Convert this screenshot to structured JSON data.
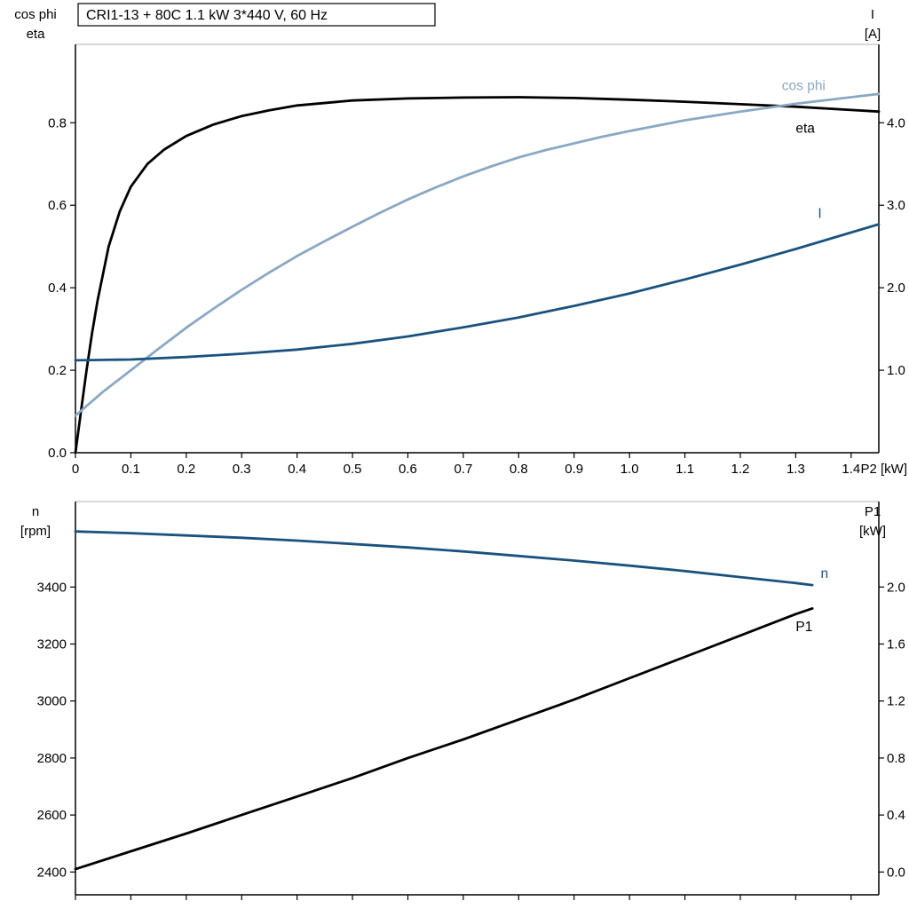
{
  "window": {
    "background": "#ffffff"
  },
  "colors": {
    "black": "#000000",
    "light_blue": "#8aa8c4",
    "dark_blue": "#1a527f",
    "frame_gray": "#b0b0b0",
    "text": "#000000"
  },
  "chart_data": [
    {
      "type": "line",
      "title": "CRI1-13 + 80C   1.1 kW   3*440 V, 60 Hz",
      "grid": false,
      "legend_position": "inline-labels",
      "x_axis": {
        "label": "P2 [kW]",
        "min": 0,
        "max": 1.45,
        "ticks": [
          0,
          0.1,
          0.2,
          0.3,
          0.4,
          0.5,
          0.6,
          0.7,
          0.8,
          0.9,
          1.0,
          1.1,
          1.2,
          1.3,
          1.4
        ],
        "tick_labels": [
          "0",
          "0.1",
          "0.2",
          "0.3",
          "0.4",
          "0.5",
          "0.6",
          "0.7",
          "0.8",
          "0.9",
          "1.0",
          "1.1",
          "1.2",
          "1.3",
          "1.4"
        ]
      },
      "y_left": {
        "title_lines": [
          "cos phi",
          "eta"
        ],
        "min": 0,
        "max": 0.99,
        "ticks": [
          0,
          0.2,
          0.4,
          0.6,
          0.8
        ],
        "tick_labels": [
          "0.0",
          "0.2",
          "0.4",
          "0.6",
          "0.8"
        ]
      },
      "y_right": {
        "title_lines": [
          "I",
          "[A]"
        ],
        "min": 0,
        "max": 4.95,
        "ticks": [
          1,
          2,
          3,
          4
        ],
        "tick_labels": [
          "1.0",
          "2.0",
          "3.0",
          "4.0"
        ]
      },
      "series": [
        {
          "name": "eta",
          "label": "eta",
          "axis": "left",
          "color_key": "black",
          "label_at": [
            1.3,
            0.787
          ],
          "points": [
            [
              0,
              0
            ],
            [
              0.01,
              0.1
            ],
            [
              0.02,
              0.2
            ],
            [
              0.03,
              0.29
            ],
            [
              0.04,
              0.37
            ],
            [
              0.06,
              0.5
            ],
            [
              0.08,
              0.585
            ],
            [
              0.1,
              0.645
            ],
            [
              0.13,
              0.7
            ],
            [
              0.16,
              0.735
            ],
            [
              0.2,
              0.768
            ],
            [
              0.25,
              0.796
            ],
            [
              0.3,
              0.816
            ],
            [
              0.35,
              0.83
            ],
            [
              0.4,
              0.842
            ],
            [
              0.5,
              0.854
            ],
            [
              0.6,
              0.859
            ],
            [
              0.7,
              0.861
            ],
            [
              0.8,
              0.862
            ],
            [
              0.9,
              0.86
            ],
            [
              1,
              0.856
            ],
            [
              1.1,
              0.851
            ],
            [
              1.2,
              0.845
            ],
            [
              1.3,
              0.839
            ],
            [
              1.4,
              0.831
            ],
            [
              1.45,
              0.827
            ]
          ]
        },
        {
          "name": "cos phi",
          "label": "cos phi",
          "axis": "left",
          "color_key": "light_blue",
          "label_at": [
            1.275,
            0.89
          ],
          "points": [
            [
              0,
              0.09
            ],
            [
              0.05,
              0.148
            ],
            [
              0.1,
              0.2
            ],
            [
              0.15,
              0.252
            ],
            [
              0.2,
              0.303
            ],
            [
              0.25,
              0.35
            ],
            [
              0.3,
              0.395
            ],
            [
              0.35,
              0.437
            ],
            [
              0.4,
              0.477
            ],
            [
              0.45,
              0.513
            ],
            [
              0.5,
              0.548
            ],
            [
              0.55,
              0.582
            ],
            [
              0.6,
              0.614
            ],
            [
              0.65,
              0.643
            ],
            [
              0.7,
              0.67
            ],
            [
              0.75,
              0.694
            ],
            [
              0.8,
              0.716
            ],
            [
              0.85,
              0.734
            ],
            [
              0.9,
              0.75
            ],
            [
              0.95,
              0.766
            ],
            [
              1,
              0.78
            ],
            [
              1.1,
              0.806
            ],
            [
              1.2,
              0.827
            ],
            [
              1.3,
              0.846
            ],
            [
              1.4,
              0.862
            ],
            [
              1.45,
              0.87
            ]
          ]
        },
        {
          "name": "I",
          "label": "I",
          "axis": "right",
          "color_key": "dark_blue",
          "label_at": [
            1.34,
            2.9
          ],
          "points": [
            [
              0,
              1.12
            ],
            [
              0.1,
              1.13
            ],
            [
              0.2,
              1.16
            ],
            [
              0.3,
              1.2
            ],
            [
              0.4,
              1.25
            ],
            [
              0.5,
              1.32
            ],
            [
              0.6,
              1.41
            ],
            [
              0.7,
              1.52
            ],
            [
              0.8,
              1.64
            ],
            [
              0.9,
              1.78
            ],
            [
              1,
              1.93
            ],
            [
              1.1,
              2.1
            ],
            [
              1.2,
              2.28
            ],
            [
              1.3,
              2.47
            ],
            [
              1.4,
              2.67
            ],
            [
              1.45,
              2.77
            ]
          ]
        }
      ]
    },
    {
      "type": "line",
      "title": "",
      "grid": false,
      "legend_position": "inline-labels",
      "x_axis": {
        "label": "",
        "min": 0,
        "max": 1.45,
        "ticks": [
          0,
          0.1,
          0.2,
          0.3,
          0.4,
          0.5,
          0.6,
          0.7,
          0.8,
          0.9,
          1.0,
          1.1,
          1.2,
          1.3,
          1.4
        ],
        "tick_labels": []
      },
      "y_left": {
        "title_lines": [
          "n",
          "[rpm]"
        ],
        "min": 2320,
        "max": 3700,
        "ticks": [
          2400,
          2600,
          2800,
          3000,
          3200,
          3400
        ],
        "tick_labels": [
          "2400",
          "2600",
          "2800",
          "3000",
          "3200",
          "3400"
        ]
      },
      "y_right": {
        "title_lines": [
          "P1",
          "[kW]"
        ],
        "min": -0.16,
        "max": 2.6,
        "ticks": [
          0,
          0.4,
          0.8,
          1.2,
          1.6,
          2.0
        ],
        "tick_labels": [
          "0.0",
          "0.4",
          "0.8",
          "1.2",
          "1.6",
          "2.0"
        ]
      },
      "series": [
        {
          "name": "n",
          "label": "n",
          "axis": "left",
          "color_key": "dark_blue",
          "label_at": [
            1.345,
            3448
          ],
          "points": [
            [
              0,
              3595
            ],
            [
              0.1,
              3589
            ],
            [
              0.2,
              3581
            ],
            [
              0.3,
              3573
            ],
            [
              0.4,
              3563
            ],
            [
              0.5,
              3551
            ],
            [
              0.6,
              3539
            ],
            [
              0.7,
              3525
            ],
            [
              0.8,
              3509
            ],
            [
              0.9,
              3493
            ],
            [
              1,
              3475
            ],
            [
              1.1,
              3456
            ],
            [
              1.2,
              3435
            ],
            [
              1.3,
              3414
            ],
            [
              1.33,
              3407
            ]
          ]
        },
        {
          "name": "P1",
          "label": "P1",
          "axis": "right",
          "color_key": "black",
          "label_at": [
            1.3,
            1.72
          ],
          "points": [
            [
              0,
              0.02
            ],
            [
              0.1,
              0.145
            ],
            [
              0.2,
              0.27
            ],
            [
              0.3,
              0.4
            ],
            [
              0.4,
              0.53
            ],
            [
              0.5,
              0.66
            ],
            [
              0.6,
              0.8
            ],
            [
              0.7,
              0.93
            ],
            [
              0.8,
              1.07
            ],
            [
              0.9,
              1.21
            ],
            [
              1,
              1.36
            ],
            [
              1.1,
              1.51
            ],
            [
              1.2,
              1.66
            ],
            [
              1.3,
              1.81
            ],
            [
              1.33,
              1.85
            ]
          ]
        }
      ]
    }
  ]
}
